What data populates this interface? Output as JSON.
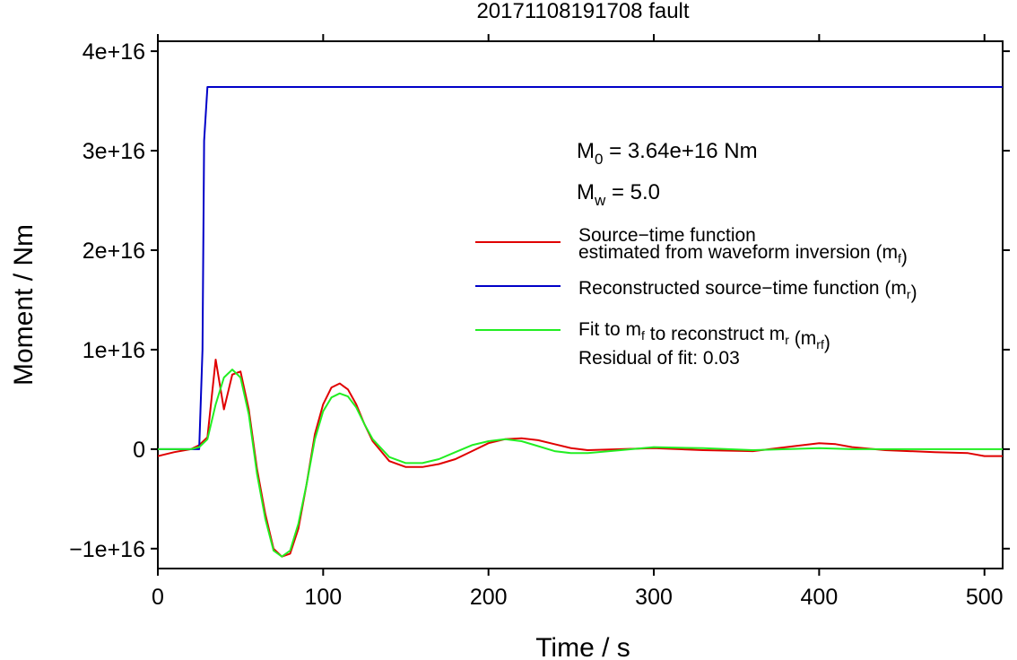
{
  "chart_data": {
    "type": "line",
    "title": "20171108191708 fault",
    "xlabel": "Time / s",
    "ylabel": "Moment / Nm",
    "xlim": [
      0,
      511
    ],
    "ylim": [
      -1.2e+16,
      4.1e+16
    ],
    "xticks": [
      0,
      100,
      200,
      300,
      400,
      500
    ],
    "xtick_labels": [
      "0",
      "100",
      "200",
      "300",
      "400",
      "500"
    ],
    "yticks": [
      -1e+16,
      0,
      1e+16,
      2e+16,
      3e+16,
      4e+16
    ],
    "ytick_labels": [
      "−1e+16",
      "0",
      "1e+16",
      "2e+16",
      "3e+16",
      "4e+16"
    ],
    "grid": false,
    "legend_position": "right",
    "annotations": {
      "m0": {
        "sym": "M",
        "sub": "0",
        "text": " = 3.64e+16 Nm"
      },
      "mw": {
        "sym": "M",
        "sub": "w",
        "text": " = 5.0"
      },
      "residual": "Residual of fit: 0.03"
    },
    "legend": [
      {
        "color": "#e00000",
        "lines": [
          [
            {
              "t": "Source−time function"
            }
          ],
          [
            {
              "t": "estimated from waveform inversion (m"
            },
            {
              "t": "f",
              "sub": true
            },
            {
              "t": ")"
            }
          ]
        ]
      },
      {
        "color": "#0000c8",
        "lines": [
          [
            {
              "t": "Reconstructed source−time function (m"
            },
            {
              "t": "r",
              "sub": true
            },
            {
              "t": ")"
            }
          ]
        ]
      },
      {
        "color": "#22ee22",
        "lines": [
          [
            {
              "t": "Fit to m"
            },
            {
              "t": "f",
              "sub": true
            },
            {
              "t": " to reconstruct m"
            },
            {
              "t": "r",
              "sub": true
            },
            {
              "t": " (m"
            },
            {
              "t": "rf",
              "sub": true
            },
            {
              "t": ")"
            }
          ]
        ]
      }
    ],
    "series": [
      {
        "color": "#e00000",
        "x": [
          0,
          10,
          20,
          25,
          30,
          35,
          40,
          45,
          50,
          55,
          60,
          65,
          70,
          75,
          80,
          85,
          90,
          95,
          100,
          105,
          110,
          115,
          120,
          125,
          130,
          140,
          150,
          160,
          170,
          180,
          190,
          200,
          210,
          220,
          230,
          240,
          250,
          260,
          280,
          300,
          330,
          360,
          380,
          400,
          410,
          420,
          440,
          470,
          490,
          500,
          511
        ],
        "y": [
          -700000000000000.0,
          -300000000000000.0,
          0,
          400000000000000.0,
          1200000000000000.0,
          9000000000000000.0,
          4000000000000000.0,
          7500000000000000.0,
          7800000000000000.0,
          4000000000000000.0,
          -2000000000000000.0,
          -6500000000000000.0,
          -1e+16,
          -1.08e+16,
          -1.05e+16,
          -8000000000000000.0,
          -3500000000000000.0,
          1500000000000000.0,
          4500000000000000.0,
          6200000000000000.0,
          6600000000000000.0,
          6000000000000000.0,
          4500000000000000.0,
          2500000000000000.0,
          800000000000000.0,
          -1200000000000000.0,
          -1800000000000000.0,
          -1800000000000000.0,
          -1500000000000000.0,
          -1000000000000000.0,
          -200000000000000.0,
          600000000000000.0,
          1000000000000000.0,
          1100000000000000.0,
          900000000000000.0,
          500000000000000.0,
          100000000000000.0,
          -100000000000000.0,
          0,
          100000000000000.0,
          -100000000000000.0,
          -200000000000000.0,
          200000000000000.0,
          600000000000000.0,
          500000000000000.0,
          200000000000000.0,
          -100000000000000.0,
          -300000000000000.0,
          -400000000000000.0,
          -700000000000000.0,
          -700000000000000.0
        ]
      },
      {
        "color": "#0000c8",
        "x": [
          0,
          25,
          27,
          28,
          30,
          511
        ],
        "y": [
          0,
          0,
          1e+16,
          3.1e+16,
          3.64e+16,
          3.64e+16
        ]
      },
      {
        "color": "#22ee22",
        "x": [
          0,
          20,
          25,
          30,
          35,
          40,
          45,
          50,
          55,
          60,
          65,
          70,
          75,
          80,
          85,
          90,
          95,
          100,
          105,
          110,
          115,
          120,
          125,
          130,
          140,
          150,
          160,
          170,
          180,
          190,
          200,
          210,
          220,
          230,
          240,
          250,
          260,
          280,
          300,
          330,
          360,
          380,
          400,
          420,
          440,
          470,
          490,
          511
        ],
        "y": [
          0,
          0,
          200000000000000.0,
          1000000000000000.0,
          4500000000000000.0,
          7200000000000000.0,
          8000000000000000.0,
          7200000000000000.0,
          3500000000000000.0,
          -2500000000000000.0,
          -7000000000000000.0,
          -1.02e+16,
          -1.08e+16,
          -1.02e+16,
          -7500000000000000.0,
          -3500000000000000.0,
          1000000000000000.0,
          3800000000000000.0,
          5200000000000000.0,
          5600000000000000.0,
          5300000000000000.0,
          4200000000000000.0,
          2500000000000000.0,
          1000000000000000.0,
          -800000000000000.0,
          -1400000000000000.0,
          -1400000000000000.0,
          -1000000000000000.0,
          -300000000000000.0,
          400000000000000.0,
          800000000000000.0,
          1000000000000000.0,
          800000000000000.0,
          300000000000000.0,
          -200000000000000.0,
          -400000000000000.0,
          -400000000000000.0,
          -100000000000000.0,
          200000000000000.0,
          100000000000000.0,
          -100000000000000.0,
          0,
          100000000000000.0,
          0,
          0,
          0,
          0,
          0
        ]
      }
    ]
  }
}
